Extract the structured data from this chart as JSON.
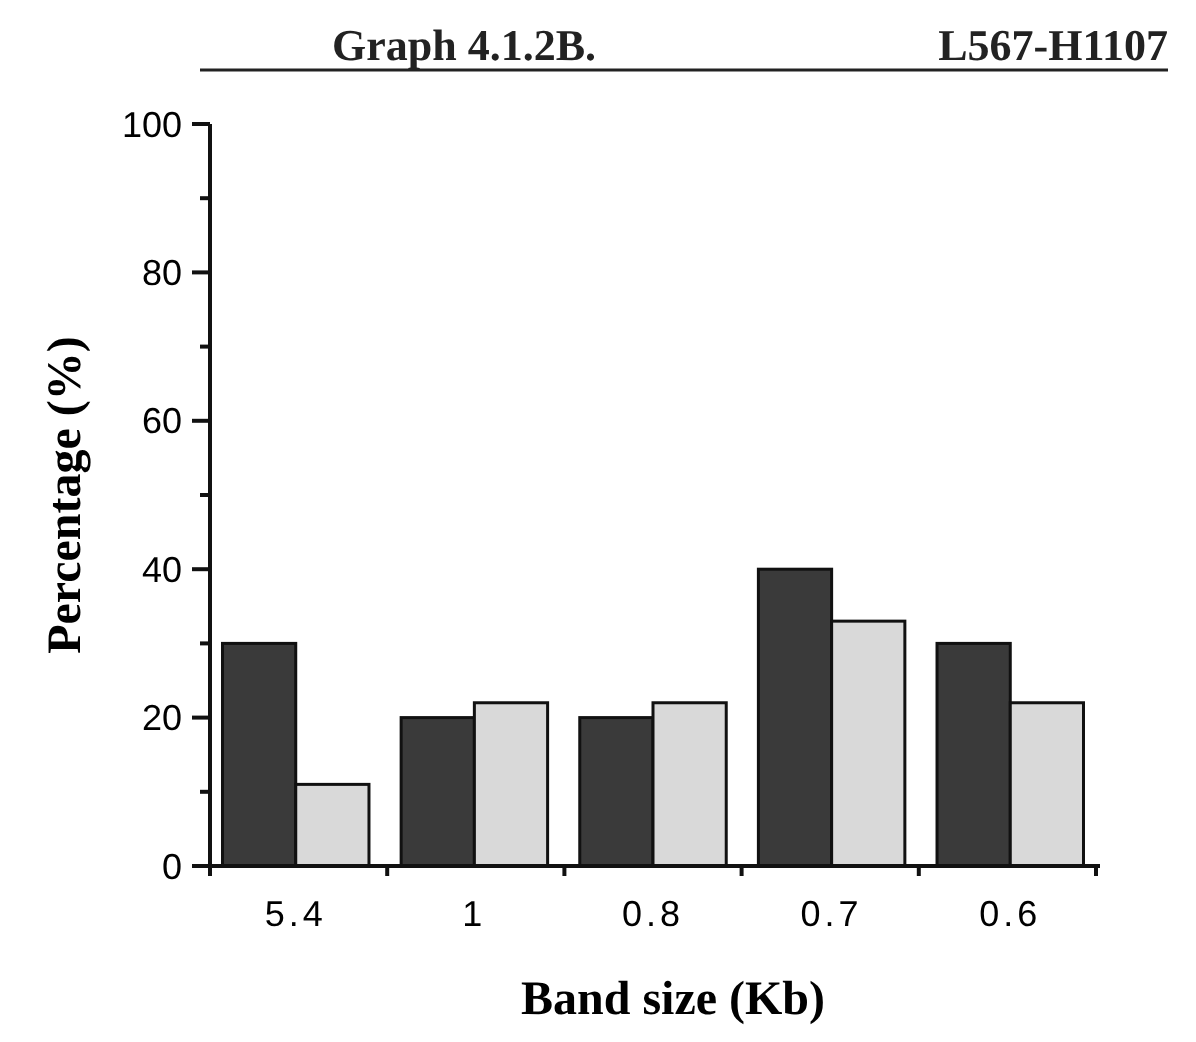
{
  "chart_data": {
    "type": "bar",
    "title": "Graph  4.1.2B.",
    "subtitle": "L567-H1107",
    "xlabel": "Band size (Kb)",
    "ylabel": "Percentage (%)",
    "categories": [
      "5.4",
      "1",
      "0.8",
      "0.7",
      "0.6"
    ],
    "series": [
      {
        "color": "#3a3a3a",
        "values": [
          30,
          20,
          20,
          40,
          30
        ]
      },
      {
        "color": "#d9d9d9",
        "values": [
          11,
          22,
          22,
          33,
          22
        ]
      }
    ],
    "ylim": [
      0,
      100
    ],
    "yticks": [
      0,
      {
        "value": 10,
        "label": null
      },
      20,
      {
        "value": 30,
        "label": null
      },
      40,
      {
        "value": 50,
        "label": null
      },
      60,
      {
        "value": 70,
        "label": null
      },
      80,
      {
        "value": 90,
        "label": null
      },
      100
    ],
    "grid": false
  }
}
